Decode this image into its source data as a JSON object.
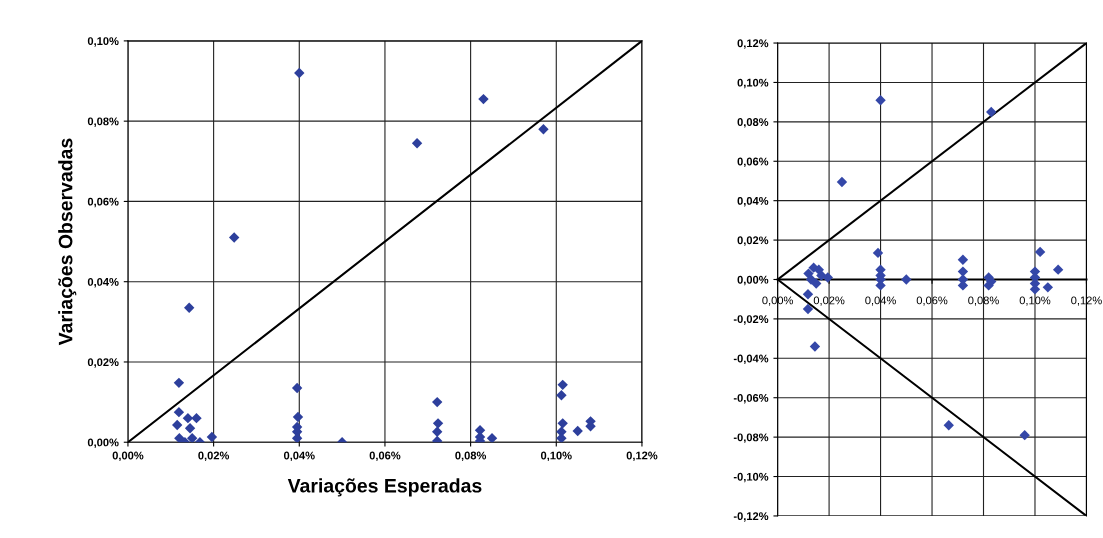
{
  "chart_data": [
    {
      "type": "scatter",
      "xlabel": "Variações Esperadas",
      "ylabel": "Variações Observadas",
      "grid": true,
      "xlim": [
        0,
        0.12
      ],
      "ylim": [
        0,
        0.1
      ],
      "xticks": [
        {
          "value": 0,
          "label": "0,00%"
        },
        {
          "value": 0.02,
          "label": "0,02%"
        },
        {
          "value": 0.04,
          "label": "0,04%"
        },
        {
          "value": 0.06,
          "label": "0,06%"
        },
        {
          "value": 0.08,
          "label": "0,08%"
        },
        {
          "value": 0.1,
          "label": "0,10%"
        },
        {
          "value": 0.12,
          "label": "0,12%"
        }
      ],
      "yticks": [
        {
          "value": 0,
          "label": "0,00%"
        },
        {
          "value": 0.02,
          "label": "0,02%"
        },
        {
          "value": 0.04,
          "label": "0,04%"
        },
        {
          "value": 0.06,
          "label": "0,06%"
        },
        {
          "value": 0.08,
          "label": "0,08%"
        },
        {
          "value": 0.1,
          "label": "0,10%"
        }
      ],
      "series": [
        {
          "type": "scatter",
          "marker": "diamond",
          "color": "#2d3f9c",
          "x": [
            0.04,
            0.083,
            0.0675,
            0.097,
            0.0248,
            0.0143,
            0.0119,
            0.0119,
            0.0115,
            0.014,
            0.016,
            0.0145,
            0.012,
            0.015,
            0.0133,
            0.0168,
            0.0196,
            0.0395,
            0.0397,
            0.0395,
            0.0395,
            0.0395,
            0.05,
            0.0722,
            0.0724,
            0.0722,
            0.0722,
            0.0822,
            0.0822,
            0.0822,
            0.085,
            0.1015,
            0.1012,
            0.1015,
            0.1012,
            0.1012,
            0.105,
            0.108,
            0.108
          ],
          "values": [
            0.092,
            0.0855,
            0.0745,
            0.078,
            0.051,
            0.0335,
            0.0148,
            0.0075,
            0.0043,
            0.006,
            0.006,
            0.0035,
            0.001,
            0.001,
            0.0,
            0.0,
            0.0013,
            0.0135,
            0.0063,
            0.0038,
            0.0026,
            0.001,
            0.0,
            0.01,
            0.0047,
            0.0026,
            0.0003,
            0.003,
            0.0013,
            0.0003,
            0.001,
            0.0143,
            0.0117,
            0.0047,
            0.0026,
            0.001,
            0.0028,
            0.0052,
            0.004
          ]
        },
        {
          "type": "line",
          "color": "#000000",
          "x": [
            0,
            0.12
          ],
          "values": [
            0,
            0.1
          ]
        }
      ]
    },
    {
      "type": "scatter",
      "grid": true,
      "xlim": [
        0,
        0.12
      ],
      "ylim": [
        -0.12,
        0.12
      ],
      "xticks": [
        {
          "value": 0,
          "label": "0,00%"
        },
        {
          "value": 0.02,
          "label": "0,02%"
        },
        {
          "value": 0.04,
          "label": "0,04%"
        },
        {
          "value": 0.06,
          "label": "0,06%"
        },
        {
          "value": 0.08,
          "label": "0,08%"
        },
        {
          "value": 0.1,
          "label": "0,10%"
        },
        {
          "value": 0.12,
          "label": "0,12%"
        }
      ],
      "yticks": [
        {
          "value": -0.12,
          "label": "-0,12%"
        },
        {
          "value": -0.1,
          "label": "-0,10%"
        },
        {
          "value": -0.08,
          "label": "-0,08%"
        },
        {
          "value": -0.06,
          "label": "-0,06%"
        },
        {
          "value": -0.04,
          "label": "-0,04%"
        },
        {
          "value": -0.02,
          "label": "-0,02%"
        },
        {
          "value": 0,
          "label": "0,00%"
        },
        {
          "value": 0.02,
          "label": "0,02%"
        },
        {
          "value": 0.04,
          "label": "0,04%"
        },
        {
          "value": 0.06,
          "label": "0,06%"
        },
        {
          "value": 0.08,
          "label": "0,08%"
        },
        {
          "value": 0.1,
          "label": "0,10%"
        },
        {
          "value": 0.12,
          "label": "0,12%"
        }
      ],
      "series": [
        {
          "type": "scatter",
          "marker": "diamond",
          "color": "#3447a8",
          "x": [
            0.04,
            0.083,
            0.025,
            0.039,
            0.072,
            0.102,
            0.0145,
            0.0665,
            0.096,
            0.0118,
            0.0118,
            0.109,
            0.105,
            0.04,
            0.04,
            0.04,
            0.04,
            0.05,
            0.072,
            0.072,
            0.072,
            0.082,
            0.083,
            0.082,
            0.1,
            0.1,
            0.1,
            0.1,
            0.012,
            0.014,
            0.016,
            0.013,
            0.015,
            0.017,
            0.0195
          ],
          "values": [
            0.091,
            0.085,
            0.0495,
            0.0135,
            0.01,
            0.014,
            -0.034,
            -0.074,
            -0.079,
            -0.0075,
            -0.015,
            0.005,
            -0.004,
            0.005,
            0.002,
            0.0,
            -0.003,
            0.0,
            0.004,
            0.0,
            -0.003,
            0.001,
            -0.001,
            -0.003,
            0.004,
            0.001,
            -0.002,
            -0.005,
            0.003,
            0.006,
            0.005,
            0.0,
            -0.002,
            0.002,
            0.001
          ]
        },
        {
          "type": "line",
          "color": "#000000",
          "x": [
            0,
            0.12
          ],
          "values": [
            0,
            0.12
          ]
        },
        {
          "type": "line",
          "color": "#000000",
          "x": [
            0,
            0.12
          ],
          "values": [
            0,
            -0.12
          ]
        }
      ]
    }
  ]
}
